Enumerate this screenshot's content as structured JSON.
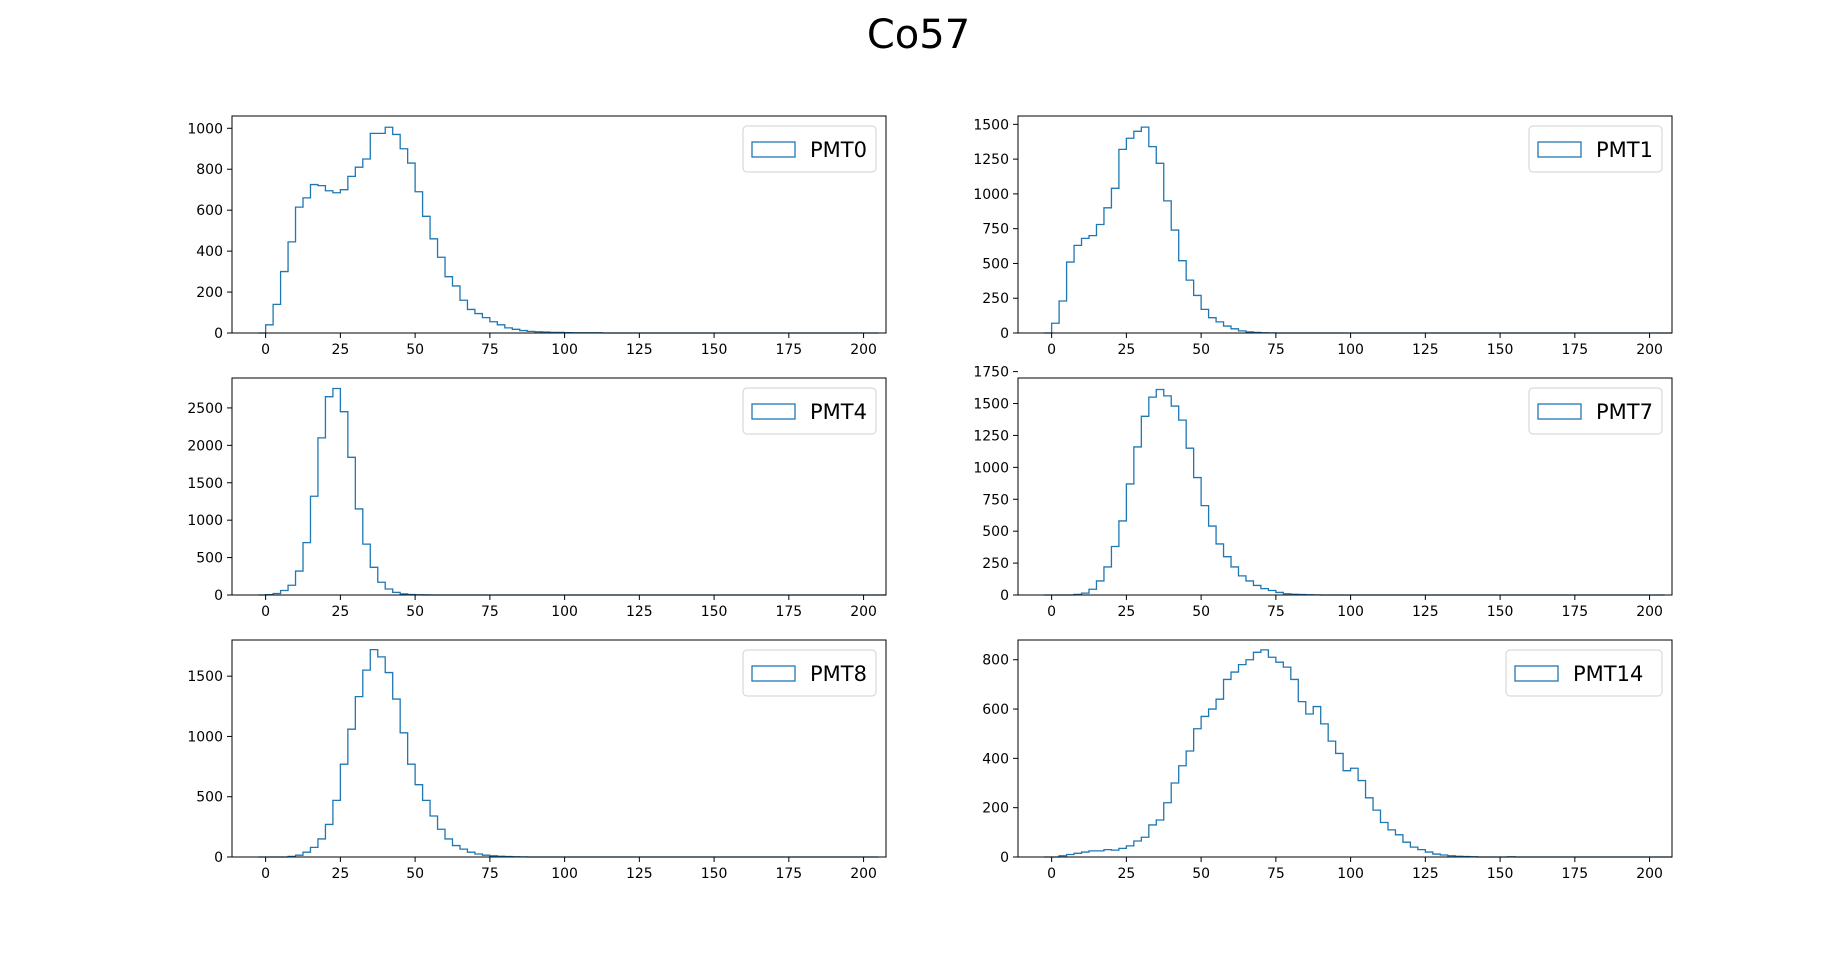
{
  "figure": {
    "title": "Co57",
    "line_color": "#1f77b4"
  },
  "chart_data": [
    {
      "type": "histogram",
      "legend": "PMT0",
      "legend_position": "upper right",
      "bin_width": 2.5,
      "x_start": -2.5,
      "counts": [
        0,
        40,
        140,
        300,
        445,
        615,
        660,
        725,
        720,
        695,
        685,
        700,
        765,
        810,
        850,
        975,
        975,
        1005,
        970,
        900,
        830,
        690,
        570,
        460,
        370,
        275,
        230,
        160,
        115,
        95,
        75,
        55,
        40,
        25,
        18,
        12,
        8,
        6,
        5,
        3,
        3,
        2,
        1,
        1,
        1,
        1,
        0,
        0,
        0,
        0,
        0,
        0,
        0,
        0,
        0,
        0,
        0,
        0,
        0,
        0,
        0,
        0,
        0,
        0,
        0,
        0,
        0,
        0,
        0,
        0,
        0,
        0,
        0,
        0,
        0,
        0,
        0,
        0,
        0,
        0,
        0,
        0,
        0
      ],
      "xlim": [
        -11.25,
        207.5
      ],
      "ylim": [
        0,
        1060
      ],
      "xticks": [
        0,
        25,
        50,
        75,
        100,
        125,
        150,
        175,
        200
      ],
      "yticks": [
        0,
        200,
        400,
        600,
        800,
        1000
      ]
    },
    {
      "type": "histogram",
      "legend": "PMT1",
      "legend_position": "upper right",
      "bin_width": 2.5,
      "x_start": -2.5,
      "counts": [
        0,
        70,
        230,
        510,
        630,
        680,
        700,
        780,
        900,
        1040,
        1320,
        1400,
        1450,
        1480,
        1340,
        1220,
        950,
        740,
        520,
        380,
        270,
        170,
        110,
        80,
        50,
        30,
        15,
        8,
        4,
        2,
        1,
        0,
        0,
        0,
        0,
        0,
        0,
        0,
        0,
        0,
        0,
        0,
        0,
        0,
        0,
        0,
        0,
        0,
        0,
        0,
        0,
        0,
        0,
        0,
        0,
        0,
        0,
        0,
        0,
        0,
        0,
        0,
        0,
        0,
        0,
        0,
        0,
        0,
        0,
        0,
        0,
        0,
        0,
        0,
        0,
        0,
        0,
        0,
        0,
        0,
        0,
        0,
        0,
        0
      ],
      "xlim": [
        -11.25,
        207.5
      ],
      "ylim": [
        0,
        1560
      ],
      "xticks": [
        0,
        25,
        50,
        75,
        100,
        125,
        150,
        175,
        200
      ],
      "yticks": [
        0,
        250,
        500,
        750,
        1000,
        1250,
        1500
      ]
    },
    {
      "type": "histogram",
      "legend": "PMT4",
      "legend_position": "upper right",
      "bin_width": 2.5,
      "x_start": -2.5,
      "counts": [
        0,
        5,
        20,
        60,
        130,
        320,
        700,
        1320,
        2100,
        2650,
        2760,
        2450,
        1840,
        1150,
        680,
        370,
        170,
        80,
        35,
        15,
        6,
        3,
        1,
        0,
        0,
        0,
        0,
        0,
        0,
        0,
        0,
        0,
        0,
        0,
        0,
        0,
        0,
        0,
        0,
        0,
        0,
        0,
        0,
        0,
        0,
        0,
        0,
        0,
        0,
        0,
        0,
        0,
        0,
        0,
        0,
        0,
        0,
        0,
        0,
        0,
        0,
        0,
        0,
        0,
        0,
        0,
        0,
        0,
        0,
        0,
        0,
        0,
        0,
        0,
        0,
        0,
        0,
        0,
        0,
        0,
        0,
        0,
        0,
        0
      ],
      "xlim": [
        -11.25,
        207.5
      ],
      "ylim": [
        0,
        2900
      ],
      "xticks": [
        0,
        25,
        50,
        75,
        100,
        125,
        150,
        175,
        200
      ],
      "yticks": [
        0,
        500,
        1000,
        1500,
        2000,
        2500
      ]
    },
    {
      "type": "histogram",
      "legend": "PMT7",
      "legend_position": "upper right",
      "bin_width": 2.5,
      "x_start": -2.5,
      "counts": [
        0,
        0,
        0,
        0,
        5,
        15,
        45,
        110,
        220,
        380,
        580,
        870,
        1160,
        1400,
        1550,
        1610,
        1560,
        1480,
        1370,
        1150,
        920,
        700,
        540,
        400,
        300,
        220,
        150,
        110,
        75,
        50,
        35,
        20,
        10,
        6,
        4,
        2,
        1,
        0,
        0,
        0,
        0,
        0,
        0,
        0,
        0,
        0,
        0,
        0,
        0,
        0,
        0,
        0,
        0,
        0,
        0,
        0,
        0,
        0,
        0,
        0,
        0,
        0,
        0,
        0,
        0,
        0,
        0,
        0,
        0,
        0,
        0,
        0,
        0,
        0,
        0,
        0,
        0,
        0,
        0,
        0,
        0,
        0,
        0
      ],
      "xlim": [
        -11.25,
        207.5
      ],
      "ylim": [
        0,
        1700
      ],
      "xticks": [
        0,
        25,
        50,
        75,
        100,
        125,
        150,
        175,
        200
      ],
      "yticks": [
        0,
        250,
        500,
        750,
        1000,
        1250,
        1500,
        1750
      ]
    },
    {
      "type": "histogram",
      "legend": "PMT8",
      "legend_position": "upper right",
      "bin_width": 2.5,
      "x_start": -2.5,
      "counts": [
        0,
        0,
        0,
        0,
        5,
        15,
        40,
        80,
        150,
        270,
        470,
        770,
        1060,
        1330,
        1550,
        1720,
        1660,
        1530,
        1310,
        1030,
        770,
        600,
        470,
        340,
        230,
        150,
        95,
        65,
        40,
        25,
        15,
        10,
        6,
        4,
        2,
        1,
        0,
        0,
        0,
        0,
        0,
        0,
        0,
        0,
        0,
        0,
        0,
        0,
        0,
        0,
        0,
        0,
        0,
        0,
        0,
        0,
        0,
        0,
        0,
        0,
        0,
        0,
        0,
        0,
        0,
        0,
        0,
        0,
        0,
        0,
        0,
        0,
        0,
        0,
        0,
        0,
        0,
        0,
        0,
        0,
        0,
        0,
        0
      ],
      "xlim": [
        -11.25,
        207.5
      ],
      "ylim": [
        0,
        1800
      ],
      "xticks": [
        0,
        25,
        50,
        75,
        100,
        125,
        150,
        175,
        200
      ],
      "yticks": [
        0,
        500,
        1000,
        1500
      ]
    },
    {
      "type": "histogram",
      "legend": "PMT14",
      "legend_position": "upper right",
      "bin_width": 2.5,
      "x_start": -2.5,
      "counts": [
        0,
        0,
        5,
        10,
        15,
        20,
        25,
        25,
        30,
        28,
        35,
        45,
        65,
        80,
        130,
        150,
        220,
        300,
        370,
        430,
        520,
        570,
        600,
        640,
        720,
        750,
        780,
        800,
        830,
        840,
        810,
        790,
        770,
        720,
        630,
        580,
        610,
        540,
        470,
        420,
        350,
        360,
        310,
        240,
        190,
        140,
        110,
        90,
        60,
        40,
        30,
        20,
        12,
        8,
        5,
        3,
        2,
        1,
        0,
        0,
        0,
        0,
        1,
        0,
        0,
        0,
        0,
        0,
        0,
        0,
        0,
        0,
        0,
        0,
        0,
        0,
        0,
        0,
        0,
        0,
        0,
        0,
        0,
        0
      ],
      "xlim": [
        -11.25,
        207.5
      ],
      "ylim": [
        0,
        880
      ],
      "xticks": [
        0,
        25,
        50,
        75,
        100,
        125,
        150,
        175,
        200
      ],
      "yticks": [
        0,
        200,
        400,
        600,
        800
      ]
    }
  ]
}
